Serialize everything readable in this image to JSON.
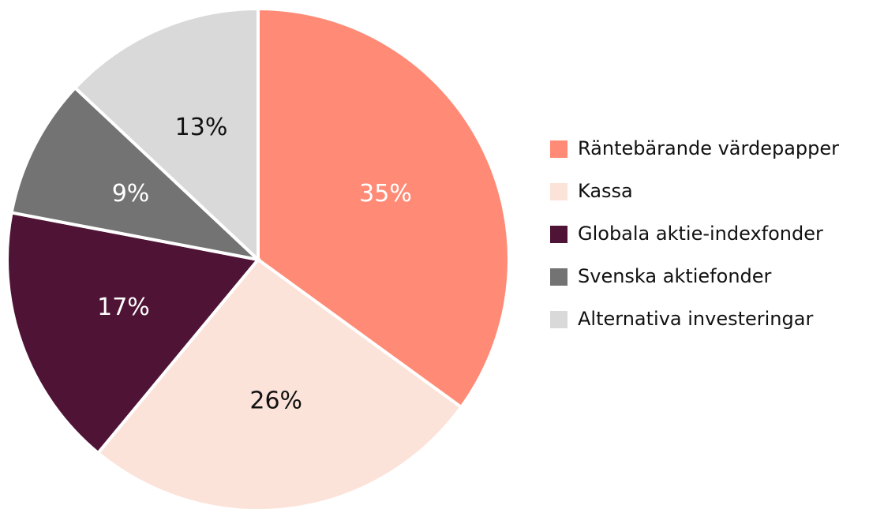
{
  "chart_data": {
    "type": "pie",
    "categories": [
      "Räntebärande värdepapper",
      "Kassa",
      "Globala aktie-indexfonder",
      "Svenska aktiefonder",
      "Alternativa investeringar"
    ],
    "values": [
      35,
      26,
      17,
      9,
      13
    ],
    "value_labels": [
      "35%",
      "26%",
      "17%",
      "9%",
      "13%"
    ],
    "colors": [
      "#ff8a75",
      "#fce3d9",
      "#4f1335",
      "#737373",
      "#d9d9d9"
    ],
    "legend": "right"
  }
}
